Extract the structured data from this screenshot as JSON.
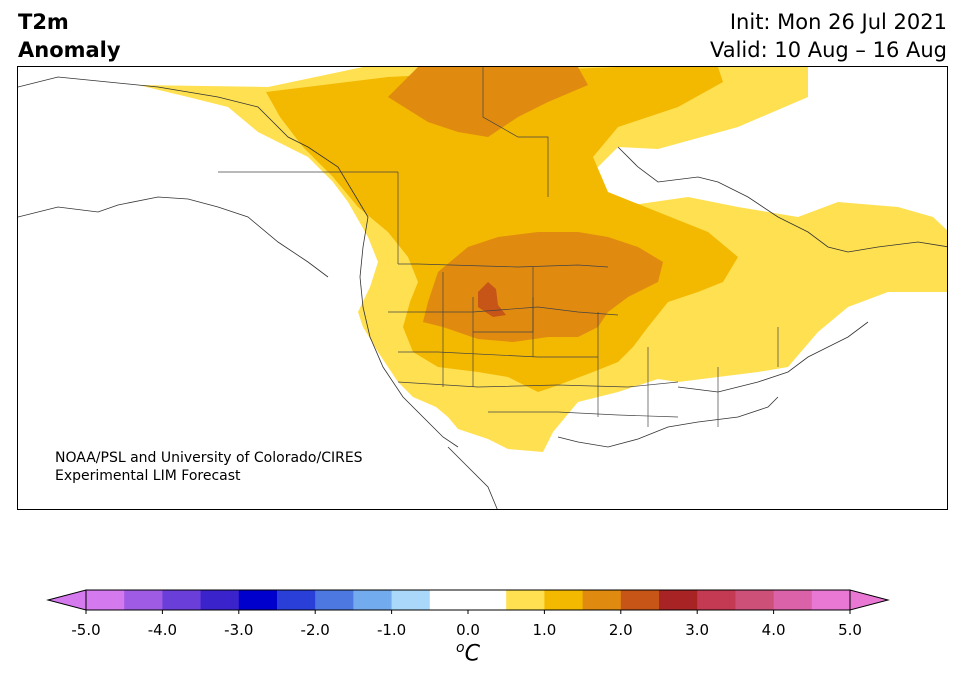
{
  "header": {
    "title_line1": "T2m",
    "title_line2": "Anomaly",
    "init": "Init: Mon 26 Jul 2021",
    "valid": "Valid: 10 Aug – 16 Aug"
  },
  "credit": {
    "line1": "NOAA/PSL and University of Colorado/CIRES",
    "line2": "Experimental LIM Forecast"
  },
  "legend": {
    "unit_base": "C",
    "unit_sup": "o",
    "ticks": [
      "-5.0",
      "-4.0",
      "-3.0",
      "-2.0",
      "-1.0",
      "0.0",
      "1.0",
      "2.0",
      "3.0",
      "4.0",
      "5.0"
    ],
    "tick_values": [
      -5,
      -4,
      -3,
      -2,
      -1,
      0,
      1,
      2,
      3,
      4,
      5
    ],
    "colors": [
      "#d479ee",
      "#9f5be4",
      "#6a3ed8",
      "#3b23cc",
      "#0000cc",
      "#2a3fd8",
      "#4d78e2",
      "#72acee",
      "#aad8fa",
      "#ffffff",
      "#ffffff",
      "#ffe050",
      "#f3b800",
      "#e08a10",
      "#c75518",
      "#a82424",
      "#c43a52",
      "#cc5078",
      "#db62a8",
      "#e878d4"
    ],
    "min_color": "#d479ee",
    "max_color": "#e878d4"
  },
  "map_colors": {
    "band_0_5_to_1": "#ffe050",
    "band_1_to_1_5": "#f3b800",
    "band_1_5_to_2": "#e08a10",
    "band_2_to_2_5": "#c75518"
  }
}
